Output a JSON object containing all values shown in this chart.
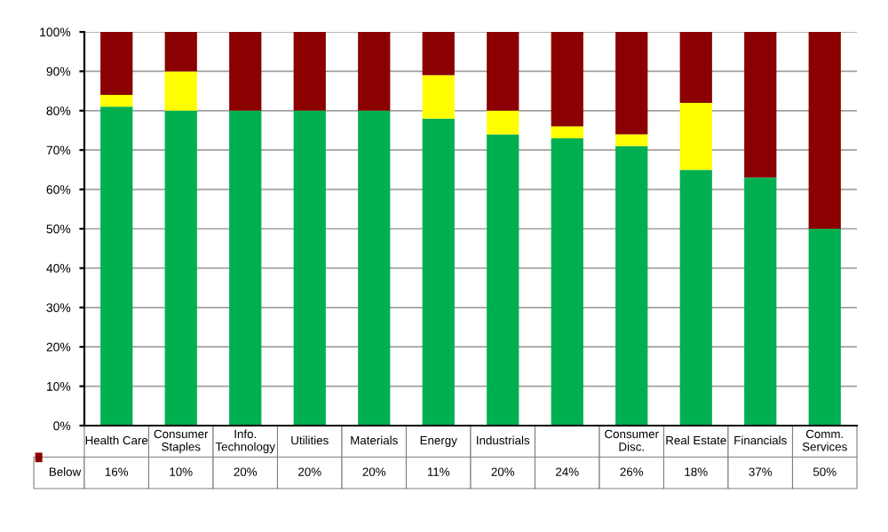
{
  "chart_data": {
    "type": "bar",
    "stacked": true,
    "categories": [
      "Health Care",
      "Consumer\nStaples",
      "Info.\nTechnology",
      "Utilities",
      "Materials",
      "Energy",
      "Industrials",
      null,
      "Consumer\nDisc.",
      "Real Estate",
      "Financials",
      "Comm.\nServices"
    ],
    "series": [
      {
        "color": "#00b050",
        "values": [
          81,
          80,
          80,
          80,
          80,
          78,
          74,
          73,
          71,
          65,
          63,
          50
        ]
      },
      {
        "color": "#ffff00",
        "values": [
          3,
          10,
          0,
          0,
          0,
          11,
          6,
          3,
          3,
          17,
          0,
          0
        ]
      },
      {
        "name": "Below",
        "color": "#8b0000",
        "values": [
          16,
          10,
          20,
          20,
          20,
          11,
          20,
          24,
          26,
          18,
          37,
          50
        ],
        "value_labels": [
          "16%",
          "10%",
          "20%",
          "20%",
          "20%",
          "11%",
          "20%",
          "24%",
          "26%",
          "18%",
          "37%",
          "50%"
        ]
      }
    ],
    "ylim": [
      0,
      100
    ],
    "yticks": [
      {
        "value": 0,
        "label": "0%"
      },
      {
        "value": 10,
        "label": "10%"
      },
      {
        "value": 20,
        "label": "20%"
      },
      {
        "value": 30,
        "label": "30%"
      },
      {
        "value": 40,
        "label": "40%"
      },
      {
        "value": 50,
        "label": "50%"
      },
      {
        "value": 60,
        "label": "60%"
      },
      {
        "value": 70,
        "label": "70%"
      },
      {
        "value": 80,
        "label": "80%"
      },
      {
        "value": 90,
        "label": "90%"
      },
      {
        "value": 100,
        "label": "100%"
      }
    ],
    "grid": "y"
  }
}
